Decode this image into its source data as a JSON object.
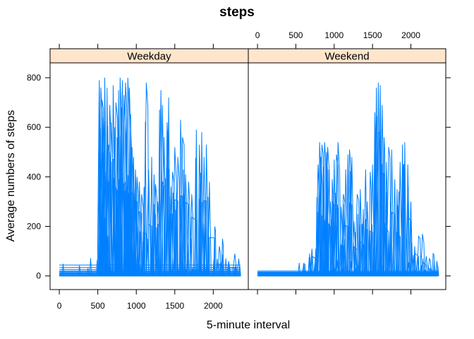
{
  "chart_data": {
    "type": "line",
    "title": "steps",
    "xlabel": "5-minute interval",
    "ylabel": "Average numbers of steps",
    "xlim": [
      -120,
      2455
    ],
    "ylim": [
      -55,
      860
    ],
    "x_ticks": [
      0,
      500,
      1000,
      1500,
      2000
    ],
    "y_ticks": [
      0,
      200,
      400,
      600,
      800
    ],
    "x_tick_labels": [
      "0",
      "500",
      "1000",
      "1500",
      "2000"
    ],
    "y_tick_labels": [
      "0",
      "200",
      "400",
      "600",
      "800"
    ],
    "line_color": "#0080ff",
    "strip_color": "#ffe5cc",
    "grid": false,
    "panels": [
      {
        "name": "Weekday",
        "x_axis_side": "bottom",
        "spikes": [
          [
            520,
            790
          ],
          [
            540,
            760
          ],
          [
            555,
            710
          ],
          [
            570,
            640
          ],
          [
            590,
            800
          ],
          [
            605,
            420
          ],
          [
            620,
            760
          ],
          [
            640,
            530
          ],
          [
            655,
            690
          ],
          [
            675,
            620
          ],
          [
            700,
            770
          ],
          [
            720,
            600
          ],
          [
            735,
            700
          ],
          [
            750,
            560
          ],
          [
            770,
            750
          ],
          [
            790,
            800
          ],
          [
            805,
            680
          ],
          [
            820,
            790
          ],
          [
            840,
            730
          ],
          [
            860,
            780
          ],
          [
            875,
            640
          ],
          [
            890,
            800
          ],
          [
            910,
            760
          ],
          [
            925,
            620
          ],
          [
            945,
            520
          ],
          [
            965,
            480
          ],
          [
            990,
            430
          ],
          [
            1010,
            400
          ],
          [
            1040,
            380
          ],
          [
            1070,
            330
          ],
          [
            1100,
            360
          ],
          [
            1130,
            780
          ],
          [
            1160,
            430
          ],
          [
            1200,
            480
          ],
          [
            1230,
            410
          ],
          [
            1250,
            370
          ],
          [
            1280,
            300
          ],
          [
            1320,
            750
          ],
          [
            1340,
            690
          ],
          [
            1360,
            560
          ],
          [
            1400,
            620
          ],
          [
            1420,
            720
          ],
          [
            1450,
            360
          ],
          [
            1470,
            420
          ],
          [
            1500,
            520
          ],
          [
            1540,
            480
          ],
          [
            1575,
            630
          ],
          [
            1600,
            560
          ],
          [
            1640,
            410
          ],
          [
            1680,
            380
          ],
          [
            1720,
            330
          ],
          [
            1780,
            590
          ],
          [
            1820,
            530
          ],
          [
            1850,
            580
          ],
          [
            1880,
            480
          ],
          [
            1910,
            530
          ],
          [
            1950,
            380
          ],
          [
            2020,
            200
          ],
          [
            2080,
            120
          ],
          [
            2120,
            150
          ],
          [
            2200,
            60
          ],
          [
            2280,
            90
          ],
          [
            2330,
            70
          ]
        ]
      },
      {
        "name": "Weekend",
        "x_axis_side": "top",
        "spikes": [
          [
            600,
            50
          ],
          [
            680,
            90
          ],
          [
            710,
            110
          ],
          [
            760,
            110
          ],
          [
            790,
            450
          ],
          [
            810,
            540
          ],
          [
            825,
            480
          ],
          [
            840,
            530
          ],
          [
            860,
            440
          ],
          [
            875,
            540
          ],
          [
            900,
            500
          ],
          [
            915,
            520
          ],
          [
            930,
            430
          ],
          [
            950,
            300
          ],
          [
            975,
            390
          ],
          [
            1000,
            470
          ],
          [
            1030,
            490
          ],
          [
            1050,
            540
          ],
          [
            1090,
            280
          ],
          [
            1120,
            330
          ],
          [
            1150,
            430
          ],
          [
            1180,
            490
          ],
          [
            1200,
            510
          ],
          [
            1230,
            480
          ],
          [
            1260,
            220
          ],
          [
            1300,
            330
          ],
          [
            1340,
            350
          ],
          [
            1380,
            270
          ],
          [
            1410,
            430
          ],
          [
            1430,
            300
          ],
          [
            1470,
            420
          ],
          [
            1500,
            450
          ],
          [
            1530,
            660
          ],
          [
            1550,
            760
          ],
          [
            1575,
            780
          ],
          [
            1600,
            770
          ],
          [
            1625,
            690
          ],
          [
            1650,
            560
          ],
          [
            1680,
            460
          ],
          [
            1710,
            520
          ],
          [
            1750,
            510
          ],
          [
            1790,
            390
          ],
          [
            1820,
            350
          ],
          [
            1860,
            460
          ],
          [
            1890,
            530
          ],
          [
            1920,
            540
          ],
          [
            1960,
            450
          ],
          [
            2000,
            300
          ],
          [
            2050,
            120
          ],
          [
            2100,
            160
          ],
          [
            2150,
            170
          ],
          [
            2200,
            80
          ],
          [
            2240,
            70
          ],
          [
            2290,
            90
          ],
          [
            2340,
            60
          ]
        ]
      }
    ]
  }
}
